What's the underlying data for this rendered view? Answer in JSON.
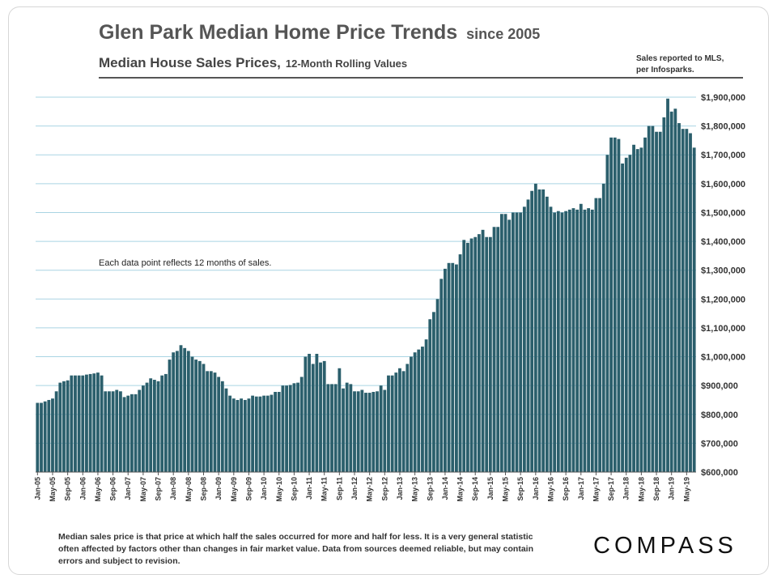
{
  "header": {
    "title": "Glen Park Median Home Price Trends",
    "title_suffix": "since 2005",
    "subtitle": "Median House Sales Prices,",
    "subtitle_suffix": "12-Month Rolling Values",
    "source_line1": "Sales reported to MLS,",
    "source_line2": "per Infosparks."
  },
  "note": "Each data point reflects 12 months of sales.",
  "footer": "Median sales price is that price at which half the sales occurred for more and half for less. It is a very general statistic often affected by factors other than changes in fair market value. Data from sources deemed reliable, but may contain errors and subject to revision.",
  "logo": "COMPASS",
  "colors": {
    "bar": "#2b5f6c",
    "grid": "#a9d4e3",
    "axis": "#555555"
  },
  "chart_data": {
    "type": "bar",
    "title": "Median House Sales Prices, 12-Month Rolling Values",
    "xlabel": "",
    "ylabel": "",
    "ylim": [
      600000,
      1900000
    ],
    "yticks": [
      {
        "value": 600000,
        "label": "$600,000"
      },
      {
        "value": 700000,
        "label": "$700,000"
      },
      {
        "value": 800000,
        "label": "$800,000"
      },
      {
        "value": 900000,
        "label": "$900,000"
      },
      {
        "value": 1000000,
        "label": "$1,000,000"
      },
      {
        "value": 1100000,
        "label": "$1,100,000"
      },
      {
        "value": 1200000,
        "label": "$1,200,000"
      },
      {
        "value": 1300000,
        "label": "$1,300,000"
      },
      {
        "value": 1400000,
        "label": "$1,400,000"
      },
      {
        "value": 1500000,
        "label": "$1,500,000"
      },
      {
        "value": 1600000,
        "label": "$1,600,000"
      },
      {
        "value": 1700000,
        "label": "$1,700,000"
      },
      {
        "value": 1800000,
        "label": "$1,800,000"
      },
      {
        "value": 1900000,
        "label": "$1,900,000"
      }
    ],
    "tick_labels": [
      "Jan-05",
      "May-05",
      "Sep-05",
      "Jan-06",
      "May-06",
      "Sep-06",
      "Jan-07",
      "May-07",
      "Sep-07",
      "Jan-08",
      "May-08",
      "Sep-08",
      "Jan-09",
      "May-09",
      "Sep-09",
      "Jan-10",
      "May-10",
      "Sep-10",
      "Jan-11",
      "May-11",
      "Sep-11",
      "Jan-12",
      "May-12",
      "Sep-12",
      "Jan-13",
      "May-13",
      "Sep-13",
      "Jan-14",
      "May-14",
      "Sep-14",
      "Jan-15",
      "May-15",
      "Sep-15",
      "Jan-16",
      "May-16",
      "Sep-16",
      "Jan-17",
      "May-17",
      "Sep-17",
      "Jan-18",
      "May-18",
      "Sep-18",
      "Jan-19",
      "May-19"
    ],
    "tick_every": 4,
    "first_month": "Jan-05",
    "series": [
      {
        "name": "Median House Sales Price (12-month rolling)",
        "values": [
          840000,
          840000,
          845000,
          850000,
          855000,
          880000,
          910000,
          915000,
          918000,
          935000,
          935000,
          935000,
          935000,
          938000,
          940000,
          942000,
          945000,
          935000,
          880000,
          880000,
          880000,
          885000,
          880000,
          860000,
          865000,
          870000,
          870000,
          885000,
          900000,
          910000,
          925000,
          920000,
          915000,
          935000,
          940000,
          990000,
          1015000,
          1020000,
          1040000,
          1030000,
          1020000,
          1000000,
          990000,
          985000,
          975000,
          950000,
          950000,
          945000,
          930000,
          915000,
          890000,
          865000,
          855000,
          850000,
          855000,
          850000,
          855000,
          865000,
          862000,
          862000,
          865000,
          865000,
          868000,
          878000,
          878000,
          900000,
          900000,
          902000,
          908000,
          910000,
          930000,
          1000000,
          1010000,
          975000,
          1010000,
          980000,
          985000,
          905000,
          905000,
          905000,
          960000,
          890000,
          910000,
          905000,
          880000,
          880000,
          885000,
          875000,
          875000,
          878000,
          880000,
          900000,
          885000,
          935000,
          935000,
          945000,
          960000,
          950000,
          975000,
          1000000,
          1015000,
          1025000,
          1035000,
          1060000,
          1130000,
          1155000,
          1200000,
          1270000,
          1305000,
          1325000,
          1325000,
          1320000,
          1355000,
          1405000,
          1395000,
          1410000,
          1415000,
          1425000,
          1440000,
          1415000,
          1415000,
          1450000,
          1450000,
          1495000,
          1495000,
          1475000,
          1500000,
          1500000,
          1500000,
          1520000,
          1545000,
          1575000,
          1600000,
          1580000,
          1580000,
          1555000,
          1520000,
          1500000,
          1505000,
          1500000,
          1505000,
          1510000,
          1515000,
          1510000,
          1530000,
          1510000,
          1515000,
          1510000,
          1550000,
          1550000,
          1600000,
          1700000,
          1760000,
          1760000,
          1755000,
          1670000,
          1690000,
          1700000,
          1735000,
          1720000,
          1725000,
          1760000,
          1800000,
          1800000,
          1780000,
          1780000,
          1830000,
          1895000,
          1850000,
          1860000,
          1810000,
          1790000,
          1790000,
          1775000,
          1725000
        ]
      }
    ]
  }
}
